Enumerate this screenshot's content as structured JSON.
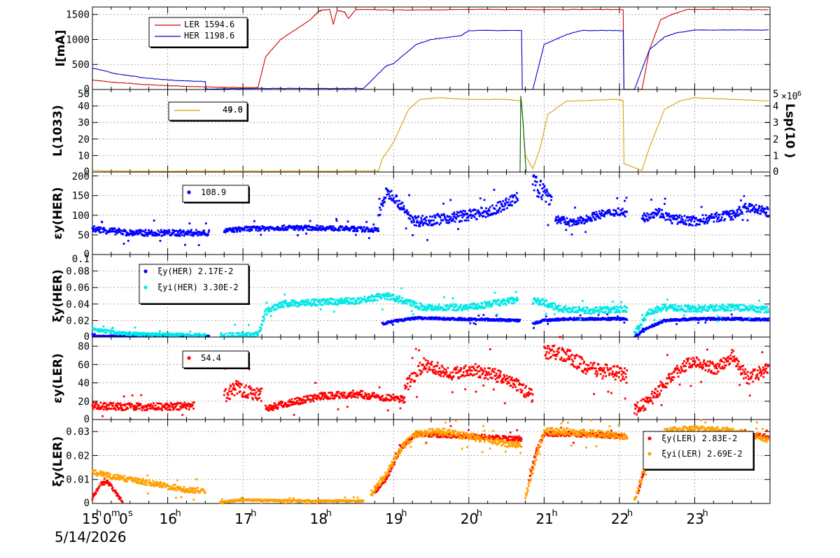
{
  "x_axis": {
    "hour_ticks": [
      "15",
      "16",
      "17",
      "18",
      "19",
      "20",
      "21",
      "22",
      "23"
    ],
    "hour_sup": "h",
    "first_tick_label": "15h0m0s",
    "date": "5/14/2026"
  },
  "chart_data": [
    {
      "id": "beam-current",
      "type": "line",
      "ylabel": "I[mA]",
      "ylim": [
        0,
        1650
      ],
      "yticks": [
        0,
        500,
        1000,
        1500
      ],
      "ytick_labels": [
        "0",
        "500",
        "1000",
        "1500"
      ],
      "legend": [
        {
          "name": "LER",
          "value": "1594.6",
          "color": "#d00000"
        },
        {
          "name": "HER",
          "value": "1198.6",
          "color": "#0000c8"
        }
      ],
      "series": [
        {
          "name": "LER",
          "color": "#d00000",
          "x": [
            15.0,
            15.3,
            15.8,
            16.3,
            16.7,
            16.9,
            17.2,
            17.3,
            17.5,
            17.7,
            17.9,
            18.0,
            18.05,
            18.15,
            18.2,
            18.25,
            18.35,
            18.4,
            18.5,
            19.0,
            20.0,
            21.0,
            22.05,
            22.06,
            22.3,
            22.4,
            22.55,
            22.7,
            22.9,
            23.5,
            23.98
          ],
          "y": [
            190,
            140,
            90,
            60,
            45,
            40,
            40,
            650,
            1000,
            1200,
            1400,
            1560,
            1590,
            1600,
            1300,
            1580,
            1550,
            1420,
            1600,
            1590,
            1600,
            1600,
            1600,
            0,
            0,
            800,
            1400,
            1500,
            1600,
            1600,
            1595
          ]
        },
        {
          "name": "HER",
          "color": "#0000c8",
          "x": [
            15.0,
            15.3,
            15.7,
            16.1,
            16.5,
            16.51,
            17.0,
            18.0,
            18.6,
            18.9,
            19.0,
            19.3,
            19.5,
            19.9,
            20.0,
            20.7,
            20.71,
            20.85,
            21.0,
            21.3,
            21.5,
            22.05,
            22.06,
            22.2,
            22.4,
            22.6,
            22.75,
            23.0,
            23.98
          ],
          "y": [
            430,
            320,
            230,
            180,
            160,
            10,
            20,
            20,
            20,
            470,
            520,
            900,
            1000,
            1080,
            1180,
            1180,
            0,
            0,
            900,
            1100,
            1180,
            1180,
            0,
            0,
            800,
            1050,
            1130,
            1190,
            1190
          ]
        }
      ]
    },
    {
      "id": "luminosity",
      "type": "line",
      "ylabel": "L(10^33)",
      "ylim": [
        0,
        50
      ],
      "yticks": [
        0,
        10,
        20,
        30,
        40,
        50
      ],
      "ytick_labels": [
        "0",
        "10",
        "20",
        "30",
        "40",
        "50"
      ],
      "right_axis": {
        "label": "Lsp(10^30)",
        "ylim": [
          0,
          5000000
        ],
        "ytick_labels": [
          "0",
          "1",
          "2",
          "3",
          "4",
          "5"
        ],
        "multiplier": "×10^6"
      },
      "legend": [
        {
          "name": "",
          "value": "49.0 / 44.8 (overlapping)",
          "color": "#d8a000"
        }
      ],
      "series": [
        {
          "name": "L",
          "color": "#d8a000",
          "x": [
            15.0,
            15.2,
            18.8,
            18.85,
            19.0,
            19.1,
            19.2,
            19.35,
            19.6,
            20.0,
            20.5,
            20.7,
            20.75,
            20.85,
            20.95,
            21.05,
            21.3,
            22.0,
            22.05,
            22.06,
            22.3,
            22.4,
            22.6,
            22.8,
            23.0,
            23.5,
            23.98
          ],
          "y": [
            1,
            0.5,
            0.5,
            8,
            18,
            28,
            38,
            44,
            45,
            44,
            44,
            43,
            10,
            2,
            15,
            35,
            43,
            44,
            43,
            5,
            1,
            15,
            38,
            43,
            45,
            44,
            43
          ]
        },
        {
          "name": "Lsp",
          "color": "#006000",
          "x": [
            20.68,
            20.69,
            20.72,
            20.76
          ],
          "y": [
            0,
            46,
            30,
            0
          ]
        }
      ]
    },
    {
      "id": "her-emittance",
      "type": "scatter",
      "ylabel": "εy(HER)",
      "ylim": [
        0,
        210
      ],
      "yticks": [
        0,
        50,
        100,
        150,
        200
      ],
      "ytick_labels": [
        "0",
        "50",
        "100",
        "150",
        "200"
      ],
      "legend": [
        {
          "name": "",
          "value": "108.9",
          "color": "#0000ff"
        }
      ],
      "series": [
        {
          "name": "εy(HER)",
          "color": "#0000ff",
          "segments": [
            {
              "x": [
                15.0,
                15.5,
                16.0,
                16.5,
                16.55
              ],
              "y": [
                65,
                55,
                55,
                55,
                55
              ],
              "jitter": 8
            },
            {
              "x": [
                16.75,
                17.0,
                17.5,
                18.0,
                18.5,
                18.8
              ],
              "y": [
                60,
                65,
                68,
                68,
                65,
                62
              ],
              "jitter": 6
            },
            {
              "x": [
                18.8,
                18.9,
                19.0,
                19.15,
                19.3,
                19.6,
                20.0,
                20.3,
                20.65
              ],
              "y": [
                100,
                155,
                150,
                110,
                85,
                90,
                100,
                110,
                145
              ],
              "jitter": 14
            },
            {
              "x": [
                20.85,
                21.0,
                21.1
              ],
              "y": [
                180,
                160,
                140
              ],
              "jitter": 25
            },
            {
              "x": [
                21.15,
                21.4,
                21.7,
                22.0,
                22.1
              ],
              "y": [
                90,
                80,
                100,
                110,
                105
              ],
              "jitter": 10
            },
            {
              "x": [
                22.3,
                22.5,
                22.7,
                23.0,
                23.3,
                23.5,
                23.7,
                23.98
              ],
              "y": [
                90,
                110,
                90,
                85,
                95,
                100,
                120,
                108
              ],
              "jitter": 12
            }
          ]
        }
      ]
    },
    {
      "id": "her-tuneshift",
      "type": "scatter",
      "ylabel": "ξy(HER)",
      "ylim": [
        0,
        0.1
      ],
      "yticks": [
        0,
        0.02,
        0.04,
        0.06,
        0.08,
        0.1
      ],
      "ytick_labels": [
        "0",
        "0.02",
        "0.04",
        "0.06",
        "0.08",
        "0.1"
      ],
      "legend": [
        {
          "name": "ξy(HER)",
          "value": "2.17E-2",
          "color": "#0000ff"
        },
        {
          "name": "ξyi(HER)",
          "value": "3.30E-2",
          "color": "#00e8e8"
        }
      ],
      "series": [
        {
          "name": "ξy(HER)",
          "color": "#0000ff",
          "segments": [
            {
              "x": [
                15.0,
                15.5,
                16.5,
                16.55
              ],
              "y": [
                0.001,
                0.001,
                0.001,
                0.001
              ],
              "jitter": 0.0008
            },
            {
              "x": [
                18.85,
                19.0,
                19.3,
                19.8,
                20.3,
                20.68
              ],
              "y": [
                0.016,
                0.019,
                0.023,
                0.022,
                0.021,
                0.02
              ],
              "jitter": 0.0015
            },
            {
              "x": [
                20.85,
                21.0,
                21.3,
                21.8,
                22.1
              ],
              "y": [
                0.016,
                0.02,
                0.022,
                0.022,
                0.022
              ],
              "jitter": 0.0015
            },
            {
              "x": [
                22.2,
                22.4,
                22.6,
                23.0,
                23.5,
                23.98
              ],
              "y": [
                0.001,
                0.012,
                0.02,
                0.022,
                0.022,
                0.021
              ],
              "jitter": 0.0015
            }
          ]
        },
        {
          "name": "ξyi(HER)",
          "color": "#00e8e8",
          "segments": [
            {
              "x": [
                15.0,
                15.3,
                15.8,
                16.5
              ],
              "y": [
                0.01,
                0.005,
                0.003,
                0.002
              ],
              "jitter": 0.002
            },
            {
              "x": [
                16.7,
                17.0,
                17.2,
                17.3,
                17.5,
                18.0,
                18.5,
                18.9,
                19.1,
                19.4,
                20.0,
                20.65
              ],
              "y": [
                0.001,
                0.001,
                0.002,
                0.03,
                0.04,
                0.042,
                0.044,
                0.05,
                0.045,
                0.036,
                0.036,
                0.045
              ],
              "jitter": 0.004
            },
            {
              "x": [
                20.85,
                21.0,
                21.2,
                21.6,
                22.1
              ],
              "y": [
                0.044,
                0.042,
                0.034,
                0.032,
                0.034
              ],
              "jitter": 0.004
            },
            {
              "x": [
                22.2,
                22.4,
                22.6,
                23.0,
                23.5,
                23.98
              ],
              "y": [
                0.005,
                0.03,
                0.036,
                0.034,
                0.036,
                0.033
              ],
              "jitter": 0.004
            }
          ]
        }
      ]
    },
    {
      "id": "ler-emittance",
      "type": "scatter",
      "ylabel": "εy(LER)",
      "ylim": [
        0,
        90
      ],
      "yticks": [
        0,
        20,
        40,
        60,
        80
      ],
      "ytick_labels": [
        "0",
        "20",
        "40",
        "60",
        "80"
      ],
      "legend": [
        {
          "name": "",
          "value": "54.4",
          "color": "#ff0000"
        }
      ],
      "series": [
        {
          "name": "εy(LER)",
          "color": "#ff0000",
          "segments": [
            {
              "x": [
                15.0,
                15.5,
                16.0,
                16.35
              ],
              "y": [
                15,
                14,
                14,
                15
              ],
              "jitter": 4
            },
            {
              "x": [
                16.75,
                16.9,
                17.1,
                17.25
              ],
              "y": [
                25,
                35,
                30,
                28
              ],
              "jitter": 8
            },
            {
              "x": [
                17.3,
                17.6,
                18.0,
                18.5,
                18.8,
                19.15
              ],
              "y": [
                12,
                18,
                25,
                28,
                25,
                22
              ],
              "jitter": 4
            },
            {
              "x": [
                19.15,
                19.4,
                19.8,
                20.0,
                20.3,
                20.6,
                20.85
              ],
              "y": [
                35,
                60,
                50,
                55,
                50,
                40,
                25
              ],
              "jitter": 7
            },
            {
              "x": [
                21.0,
                21.3,
                21.6,
                22.0,
                22.1
              ],
              "y": [
                75,
                70,
                55,
                50,
                48
              ],
              "jitter": 8
            },
            {
              "x": [
                22.2,
                22.4,
                22.6,
                22.8,
                23.0,
                23.3,
                23.5,
                23.7,
                23.98
              ],
              "y": [
                10,
                20,
                40,
                55,
                65,
                55,
                70,
                45,
                55
              ],
              "jitter": 7
            }
          ]
        }
      ]
    },
    {
      "id": "ler-tuneshift",
      "type": "scatter",
      "ylabel": "ξy(LER)",
      "ylim": [
        0,
        0.035
      ],
      "yticks": [
        0,
        0.01,
        0.02,
        0.03
      ],
      "ytick_labels": [
        "0",
        "0.01",
        "0.02",
        "0.03"
      ],
      "legend": [
        {
          "name": "ξy(LER)",
          "value": "2.83E-2",
          "color": "#ff0000"
        },
        {
          "name": "ξyi(LER)",
          "value": "2.69E-2",
          "color": "#ffa000"
        }
      ],
      "series": [
        {
          "name": "ξy(LER)",
          "color": "#ff0000",
          "segments": [
            {
              "x": [
                15.0,
                15.1,
                15.2,
                15.3,
                15.4
              ],
              "y": [
                0.002,
                0.008,
                0.009,
                0.005,
                0.0005
              ],
              "jitter": 0.0008
            },
            {
              "x": [
                18.75,
                18.9,
                19.1,
                19.3,
                20.0,
                20.7
              ],
              "y": [
                0.005,
                0.01,
                0.023,
                0.029,
                0.028,
                0.027
              ],
              "jitter": 0.001
            },
            {
              "x": [
                20.8,
                20.9,
                21.0,
                21.3,
                22.1
              ],
              "y": [
                0.01,
                0.022,
                0.029,
                0.029,
                0.028
              ],
              "jitter": 0.001
            },
            {
              "x": [
                22.25,
                22.4,
                22.6,
                23.0,
                23.98
              ],
              "y": [
                0.005,
                0.022,
                0.028,
                0.029,
                0.028
              ],
              "jitter": 0.001
            }
          ]
        },
        {
          "name": "ξyi(LER)",
          "color": "#ffa000",
          "segments": [
            {
              "x": [
                15.0,
                15.3,
                15.7,
                16.2,
                16.5
              ],
              "y": [
                0.013,
                0.011,
                0.009,
                0.006,
                0.005
              ],
              "jitter": 0.0012
            },
            {
              "x": [
                16.7,
                17.0,
                17.5,
                18.0,
                18.6
              ],
              "y": [
                0.0005,
                0.0015,
                0.0012,
                0.001,
                0.001
              ],
              "jitter": 0.0004
            },
            {
              "x": [
                18.7,
                18.9,
                19.1,
                19.3,
                19.6,
                20.0,
                20.7
              ],
              "y": [
                0.004,
                0.012,
                0.023,
                0.029,
                0.03,
                0.028,
                0.024
              ],
              "jitter": 0.0015
            },
            {
              "x": [
                20.75,
                20.9,
                21.0,
                21.3,
                22.1
              ],
              "y": [
                0.002,
                0.02,
                0.03,
                0.03,
                0.028
              ],
              "jitter": 0.0015
            },
            {
              "x": [
                22.2,
                22.4,
                22.6,
                23.0,
                23.5,
                23.98
              ],
              "y": [
                0.002,
                0.02,
                0.03,
                0.031,
                0.03,
                0.027
              ],
              "jitter": 0.0015
            }
          ]
        }
      ]
    }
  ]
}
